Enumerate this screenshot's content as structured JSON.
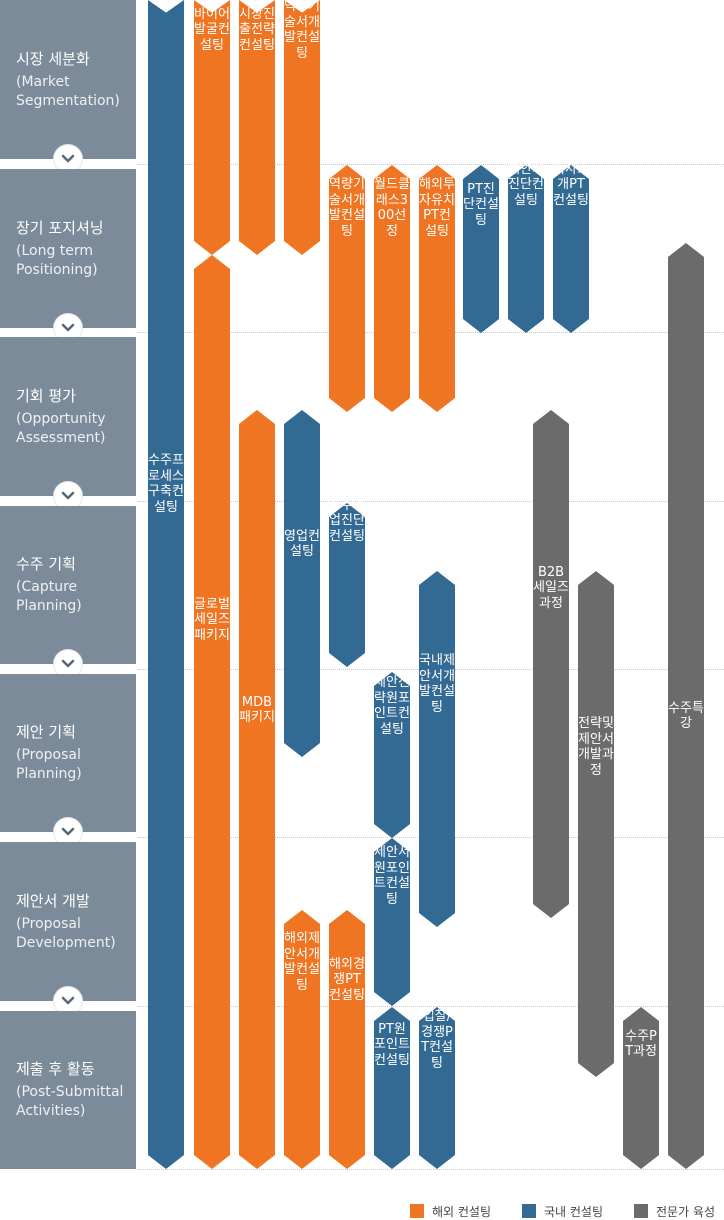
{
  "colors": {
    "overseas": "#f07522",
    "domestic": "#336a94",
    "expert": "#6b6b6b",
    "stage_bg": "#7b8b99"
  },
  "stages": [
    {
      "title": "시장 세분화",
      "en1": "(Market",
      "en2": "Segmentation)"
    },
    {
      "title": "장기 포지셔닝",
      "en1": "(Long term",
      "en2": "Positioning)"
    },
    {
      "title": "기회 평가",
      "en1": "(Opportunity",
      "en2": "Assessment)"
    },
    {
      "title": "수주 기획",
      "en1": "(Capture",
      "en2": "Planning)"
    },
    {
      "title": "제안 기획",
      "en1": "(Proposal",
      "en2": "Planning)"
    },
    {
      "title": "제안서 개발",
      "en1": "(Proposal",
      "en2": "Development)"
    },
    {
      "title": "제출 후 활동",
      "en1": "(Post-Submittal",
      "en2": "Activities)"
    }
  ],
  "programs": [
    {
      "id": "p01",
      "label": "수주프로세스 구축컨설팅",
      "category": "domestic"
    },
    {
      "id": "p02",
      "label": "바이어발굴컨설팅",
      "category": "overseas"
    },
    {
      "id": "p03",
      "label": "시장진출전략컨설팅",
      "category": "overseas"
    },
    {
      "id": "p04",
      "label": "역량기술서개발컨설팅",
      "category": "overseas"
    },
    {
      "id": "p05",
      "label": "글로벌세일즈패키지",
      "category": "overseas"
    },
    {
      "id": "p06",
      "label": "역량기술서개발컨설팅",
      "category": "overseas"
    },
    {
      "id": "p07",
      "label": "월드클래스300선정",
      "category": "overseas"
    },
    {
      "id": "p08",
      "label": "해외투자유치PT컨설팅",
      "category": "overseas"
    },
    {
      "id": "p09",
      "label": "PT진단컨설팅",
      "category": "domestic"
    },
    {
      "id": "p10",
      "label": "제안서진단컨설팅",
      "category": "domestic"
    },
    {
      "id": "p11",
      "label": "회사소개PT컨설팅",
      "category": "domestic"
    },
    {
      "id": "p12",
      "label": "수주특강",
      "category": "expert"
    },
    {
      "id": "p13",
      "label": "MDB패키지",
      "category": "overseas"
    },
    {
      "id": "p14",
      "label": "영업컨설팅",
      "category": "domestic"
    },
    {
      "id": "p15",
      "label": "B2B세일즈과정",
      "category": "expert"
    },
    {
      "id": "p16",
      "label": "수주영업진단컨설팅",
      "category": "domestic"
    },
    {
      "id": "p17",
      "label": "국내제안서개발컨설팅",
      "category": "domestic"
    },
    {
      "id": "p18",
      "label": "전략및제안서개발과정",
      "category": "expert"
    },
    {
      "id": "p19",
      "label": "제안전략원포인트컨설팅",
      "category": "domestic"
    },
    {
      "id": "p20",
      "label": "해외제안서개발컨설팅",
      "category": "overseas"
    },
    {
      "id": "p21",
      "label": "해외경쟁PT컨설팅",
      "category": "overseas"
    },
    {
      "id": "p22",
      "label": "제안서원포인트컨설팅",
      "category": "domestic"
    },
    {
      "id": "p23",
      "label": "수주PT과정",
      "category": "expert"
    },
    {
      "id": "p24",
      "label": "PT원포인트컨설팅",
      "category": "domestic"
    },
    {
      "id": "p25",
      "label": "입찰/경쟁PT컨설팅",
      "category": "domestic"
    }
  ],
  "legend": [
    {
      "label": "해외 컨설팅",
      "category": "overseas"
    },
    {
      "label": "국내 컨설팅",
      "category": "domestic"
    },
    {
      "label": "전문가 육성",
      "category": "expert"
    }
  ]
}
